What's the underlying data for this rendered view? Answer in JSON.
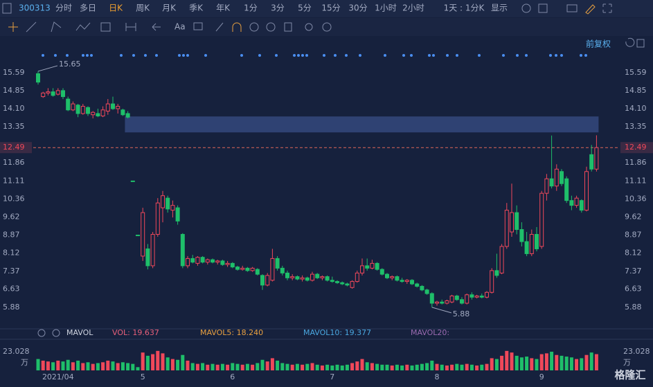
{
  "toolbar": {
    "symbol": "300313",
    "periods": [
      "分时",
      "多日",
      "日K",
      "周K",
      "月K",
      "季K",
      "年K",
      "1分",
      "3分",
      "5分",
      "15分",
      "30分",
      "1小时",
      "2小时",
      "1天 : 1分K",
      "显示"
    ],
    "active": "日K",
    "drawing_font": "Aa",
    "adjust": "前复权",
    "logo": "格隆汇"
  },
  "chart_data": {
    "type": "candlestick",
    "up_color": "#f0485a",
    "down_color": "#1fbf6a",
    "categories": [
      null,
      null,
      null,
      null,
      "2021/04",
      null,
      null,
      null,
      null,
      null,
      null,
      null,
      null,
      null,
      null,
      null,
      null,
      null,
      null,
      null,
      null,
      "5",
      null,
      null,
      null,
      null,
      null,
      null,
      null,
      null,
      null,
      null,
      null,
      null,
      null,
      null,
      null,
      null,
      null,
      "6",
      null,
      null,
      null,
      null,
      null,
      null,
      null,
      null,
      null,
      null,
      null,
      null,
      null,
      null,
      null,
      null,
      null,
      null,
      null,
      "7",
      null,
      null,
      null,
      null,
      null,
      null,
      null,
      null,
      null,
      null,
      null,
      null,
      null,
      null,
      null,
      null,
      null,
      null,
      null,
      null,
      "8",
      null,
      null,
      null,
      null,
      null,
      null,
      null,
      null,
      null,
      null,
      null,
      null,
      null,
      null,
      null,
      null,
      null,
      null,
      null,
      null,
      "9",
      null,
      null,
      null,
      null,
      null,
      null,
      null,
      null,
      null,
      null
    ],
    "candles": [
      [
        15.55,
        15.65,
        15.1,
        15.2
      ],
      [
        14.6,
        14.8,
        14.55,
        14.75
      ],
      [
        14.75,
        14.95,
        14.65,
        14.8
      ],
      [
        14.8,
        14.95,
        14.6,
        14.65
      ],
      [
        14.7,
        14.95,
        14.65,
        14.85
      ],
      [
        14.85,
        14.95,
        14.5,
        14.6
      ],
      [
        14.5,
        14.6,
        14.0,
        14.05
      ],
      [
        14.05,
        14.4,
        14.0,
        14.3
      ],
      [
        14.25,
        14.3,
        13.75,
        13.9
      ],
      [
        13.9,
        14.3,
        13.85,
        14.2
      ],
      [
        14.15,
        14.2,
        13.8,
        13.9
      ],
      [
        13.85,
        14.0,
        13.7,
        13.95
      ],
      [
        13.9,
        14.1,
        13.75,
        13.8
      ],
      [
        13.8,
        14.2,
        13.75,
        14.05
      ],
      [
        14.0,
        14.5,
        13.85,
        14.3
      ],
      [
        14.3,
        14.6,
        14.05,
        14.1
      ],
      [
        14.1,
        14.3,
        13.9,
        14.2
      ],
      [
        14.05,
        14.1,
        13.8,
        13.85
      ],
      [
        13.9,
        14.0,
        13.7,
        13.75
      ],
      [
        11.11,
        11.11,
        11.11,
        11.11
      ],
      [
        8.87,
        8.87,
        8.87,
        8.87
      ],
      [
        8.0,
        10.0,
        7.8,
        9.8
      ],
      [
        8.3,
        8.5,
        7.45,
        7.6
      ],
      [
        7.6,
        9.0,
        7.5,
        8.9
      ],
      [
        8.9,
        10.4,
        8.8,
        10.2
      ],
      [
        10.0,
        10.7,
        9.4,
        10.5
      ],
      [
        10.4,
        10.5,
        9.8,
        9.95
      ],
      [
        9.9,
        10.3,
        9.6,
        10.1
      ],
      [
        10.0,
        10.1,
        9.3,
        9.45
      ],
      [
        8.9,
        8.95,
        7.5,
        7.6
      ],
      [
        7.6,
        8.0,
        7.5,
        7.9
      ],
      [
        7.9,
        8.05,
        7.7,
        7.75
      ],
      [
        7.7,
        8.0,
        7.6,
        7.95
      ],
      [
        7.95,
        8.0,
        7.7,
        7.75
      ],
      [
        7.75,
        7.9,
        7.65,
        7.85
      ],
      [
        7.85,
        7.9,
        7.7,
        7.75
      ],
      [
        7.75,
        7.85,
        7.65,
        7.8
      ],
      [
        7.8,
        7.85,
        7.6,
        7.65
      ],
      [
        7.65,
        7.8,
        7.55,
        7.7
      ],
      [
        7.7,
        7.75,
        7.5,
        7.55
      ],
      [
        7.55,
        7.6,
        7.4,
        7.45
      ],
      [
        7.45,
        7.6,
        7.4,
        7.5
      ],
      [
        7.5,
        7.55,
        7.35,
        7.4
      ],
      [
        7.4,
        7.55,
        7.35,
        7.5
      ],
      [
        7.45,
        7.5,
        7.2,
        7.25
      ],
      [
        7.2,
        7.25,
        6.6,
        6.8
      ],
      [
        6.8,
        7.3,
        6.75,
        7.2
      ],
      [
        7.0,
        8.3,
        6.95,
        7.9
      ],
      [
        7.9,
        8.0,
        7.4,
        7.5
      ],
      [
        7.5,
        7.6,
        7.2,
        7.3
      ],
      [
        7.3,
        7.4,
        7.0,
        7.1
      ],
      [
        7.1,
        7.25,
        7.0,
        7.15
      ],
      [
        7.15,
        7.2,
        7.0,
        7.05
      ],
      [
        7.05,
        7.2,
        6.95,
        7.1
      ],
      [
        7.1,
        7.15,
        6.95,
        7.0
      ],
      [
        7.0,
        7.35,
        6.95,
        7.25
      ],
      [
        7.25,
        7.3,
        7.05,
        7.1
      ],
      [
        7.1,
        7.2,
        7.0,
        7.15
      ],
      [
        7.15,
        7.2,
        6.95,
        7.0
      ],
      [
        7.0,
        7.15,
        6.9,
        6.95
      ],
      [
        6.95,
        7.0,
        6.85,
        6.9
      ],
      [
        6.9,
        6.95,
        6.8,
        6.85
      ],
      [
        6.85,
        6.9,
        6.75,
        6.8
      ],
      [
        6.7,
        7.0,
        6.65,
        6.95
      ],
      [
        6.95,
        7.4,
        6.9,
        7.3
      ],
      [
        7.3,
        7.9,
        7.2,
        7.6
      ],
      [
        7.6,
        7.9,
        7.4,
        7.5
      ],
      [
        7.5,
        7.85,
        7.45,
        7.7
      ],
      [
        7.7,
        7.75,
        7.4,
        7.45
      ],
      [
        7.45,
        7.5,
        7.2,
        7.25
      ],
      [
        7.25,
        7.3,
        7.05,
        7.1
      ],
      [
        7.1,
        7.2,
        7.0,
        7.15
      ],
      [
        7.15,
        7.2,
        6.95,
        7.0
      ],
      [
        7.0,
        7.1,
        6.9,
        6.95
      ],
      [
        6.95,
        7.05,
        6.85,
        7.0
      ],
      [
        7.0,
        7.05,
        6.8,
        6.85
      ],
      [
        6.85,
        6.9,
        6.7,
        6.75
      ],
      [
        6.75,
        6.8,
        6.55,
        6.6
      ],
      [
        6.6,
        6.65,
        6.4,
        6.45
      ],
      [
        6.45,
        6.5,
        5.88,
        6.05
      ],
      [
        6.05,
        6.15,
        5.95,
        6.1
      ],
      [
        6.1,
        6.2,
        6.0,
        6.05
      ],
      [
        6.05,
        6.2,
        6.0,
        6.15
      ],
      [
        6.1,
        6.4,
        6.05,
        6.35
      ],
      [
        6.35,
        6.4,
        6.15,
        6.2
      ],
      [
        6.2,
        6.3,
        6.0,
        6.05
      ],
      [
        6.05,
        6.45,
        6.0,
        6.4
      ],
      [
        6.4,
        6.5,
        6.2,
        6.3
      ],
      [
        6.3,
        6.4,
        6.25,
        6.35
      ],
      [
        6.35,
        6.45,
        6.25,
        6.3
      ],
      [
        6.3,
        6.55,
        6.25,
        6.5
      ],
      [
        6.5,
        7.5,
        6.45,
        7.4
      ],
      [
        7.4,
        8.1,
        7.1,
        7.2
      ],
      [
        7.3,
        8.5,
        7.25,
        8.4
      ],
      [
        8.4,
        10.2,
        8.3,
        9.9
      ],
      [
        9.0,
        11.0,
        8.8,
        9.8
      ],
      [
        9.8,
        10.1,
        8.9,
        9.1
      ],
      [
        9.1,
        9.4,
        8.4,
        8.6
      ],
      [
        8.6,
        9.0,
        8.0,
        8.1
      ],
      [
        8.1,
        9.1,
        8.0,
        8.9
      ],
      [
        8.9,
        9.2,
        8.2,
        8.3
      ],
      [
        8.4,
        10.7,
        8.3,
        10.6
      ],
      [
        10.6,
        11.4,
        10.3,
        11.2
      ],
      [
        11.2,
        12.99,
        10.8,
        10.9
      ],
      [
        10.9,
        11.8,
        10.7,
        11.6
      ],
      [
        11.5,
        11.6,
        10.9,
        11.0
      ],
      [
        11.2,
        11.3,
        10.2,
        10.3
      ],
      [
        10.3,
        10.5,
        9.9,
        10.1
      ],
      [
        10.1,
        10.5,
        10.0,
        10.4
      ],
      [
        10.3,
        10.35,
        9.8,
        9.9
      ],
      [
        9.9,
        11.7,
        9.85,
        11.5
      ],
      [
        12.2,
        12.6,
        11.5,
        11.6
      ],
      [
        11.6,
        13.0,
        11.5,
        12.49
      ]
    ],
    "ylim": [
      5.19,
      16.88
    ],
    "yticks": [
      15.59,
      14.85,
      {
        "value": 14.1,
        "label": "14.10"
      },
      13.35,
      11.86,
      11.11,
      10.36,
      9.62,
      8.87,
      8.12,
      7.37,
      6.63,
      5.88
    ],
    "last_price": 12.49,
    "zone": [
      13.12,
      13.78
    ],
    "high_label": 15.65,
    "low_label": 5.88,
    "volume": {
      "name": "MAVOL",
      "unit": "万",
      "ylim": [
        0,
        32.4
      ],
      "yticks": [
        23.028
      ],
      "indicators": [
        {
          "label": "VOL: ",
          "value": 19.637,
          "color": "#e8607a"
        },
        {
          "label": "MAVOL5: ",
          "value": 18.24,
          "value_label": "18.240",
          "color": "#e8a040"
        },
        {
          "label": "MAVOL10: ",
          "value": 19.377,
          "color": "#4aa8e0"
        },
        {
          "label": "MAVOL20:",
          "color": "#9a6ab0"
        }
      ],
      "values": [
        14,
        12,
        11,
        10,
        12,
        11,
        13,
        10,
        12,
        9,
        10,
        8,
        9,
        10,
        12,
        11,
        9,
        10,
        9,
        8,
        4,
        22,
        18,
        20,
        24,
        21,
        16,
        14,
        13,
        19,
        12,
        9,
        8,
        9,
        7,
        8,
        7,
        8,
        7,
        9,
        8,
        7,
        8,
        7,
        9,
        13,
        11,
        15,
        12,
        9,
        8,
        7,
        8,
        7,
        8,
        9,
        7,
        6,
        7,
        6,
        7,
        6,
        7,
        9,
        11,
        14,
        10,
        9,
        8,
        7,
        7,
        6,
        7,
        6,
        7,
        6,
        7,
        8,
        9,
        12,
        8,
        7,
        6,
        7,
        8,
        7,
        8,
        7,
        6,
        7,
        8,
        15,
        14,
        18,
        24,
        22,
        18,
        16,
        17,
        15,
        14,
        20,
        21,
        23,
        19,
        18,
        17,
        16,
        14,
        15,
        19,
        22,
        20
      ]
    }
  }
}
